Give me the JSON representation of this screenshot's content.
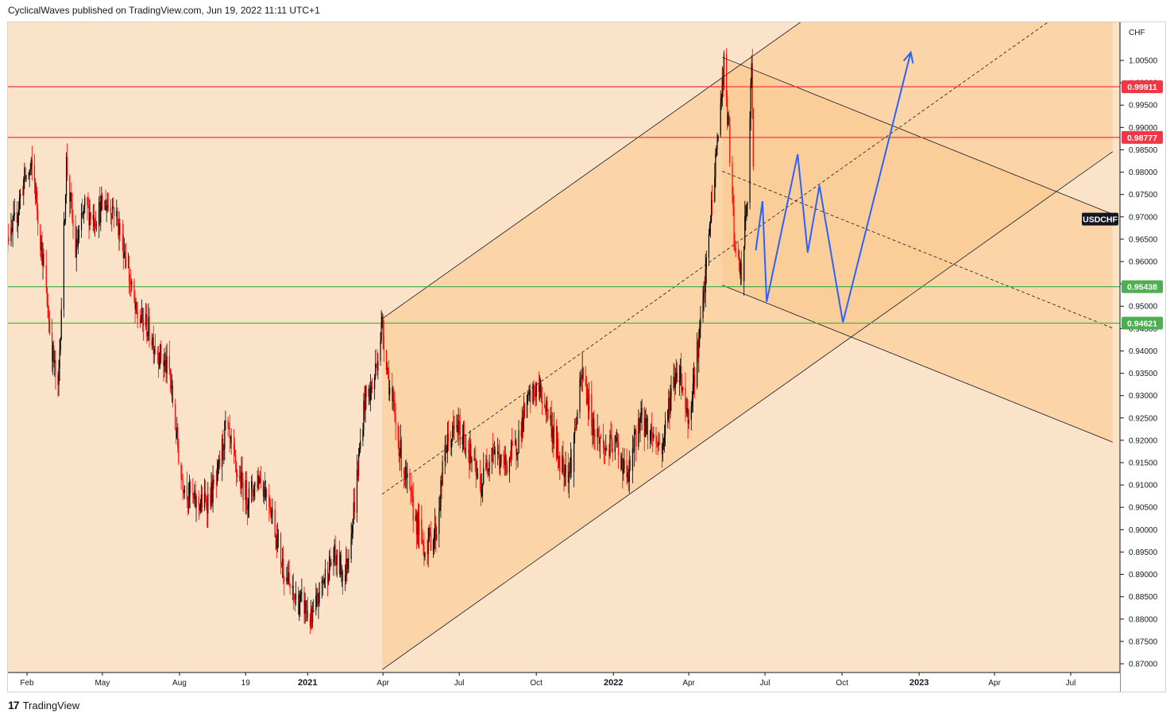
{
  "header": {
    "text": "CyclicalWaves published on TradingView.com, Jun 19, 2022 11:11 UTC+1"
  },
  "footer": {
    "logo": "17",
    "text": "TradingView"
  },
  "chart_data": {
    "type": "candlestick",
    "symbol": "USDCHF",
    "currency": "CHF",
    "y_axis": {
      "ylim": [
        0.8675,
        1.0118
      ],
      "ticks": [
        "0.87000",
        "0.87500",
        "0.88000",
        "0.88500",
        "0.89000",
        "0.89500",
        "0.90000",
        "0.90500",
        "0.91000",
        "0.91500",
        "0.92000",
        "0.92500",
        "0.93000",
        "0.93500",
        "0.94000",
        "0.94500",
        "0.95000",
        "0.95500",
        "0.96000",
        "0.96500",
        "0.97000",
        "0.97500",
        "0.98000",
        "0.98500",
        "0.99000",
        "0.99500",
        "1.00000",
        "1.00500"
      ]
    },
    "x_axis": {
      "labels": [
        {
          "t": "2020-02-01",
          "text": "Feb",
          "bold": false
        },
        {
          "t": "2020-05-01",
          "text": "May",
          "bold": false
        },
        {
          "t": "2020-08-01",
          "text": "Aug",
          "bold": false
        },
        {
          "t": "2020-10-19",
          "text": "19",
          "bold": false
        },
        {
          "t": "2021-01-01",
          "text": "2021",
          "bold": true
        },
        {
          "t": "2021-04-01",
          "text": "Apr",
          "bold": false
        },
        {
          "t": "2021-07-01",
          "text": "Jul",
          "bold": false
        },
        {
          "t": "2021-10-01",
          "text": "Oct",
          "bold": false
        },
        {
          "t": "2022-01-01",
          "text": "2022",
          "bold": true
        },
        {
          "t": "2022-04-01",
          "text": "Apr",
          "bold": false
        },
        {
          "t": "2022-07-01",
          "text": "Jul",
          "bold": false
        },
        {
          "t": "2022-10-01",
          "text": "Oct",
          "bold": false
        },
        {
          "t": "2023-01-01",
          "text": "2023",
          "bold": true
        },
        {
          "t": "2023-04-01",
          "text": "Apr",
          "bold": false
        },
        {
          "t": "2023-07-01",
          "text": "Jul",
          "bold": false
        }
      ]
    },
    "price_path": [
      [
        "2020-01-01",
        0.97
      ],
      [
        "2020-01-13",
        0.965
      ],
      [
        "2020-01-28",
        0.978
      ],
      [
        "2020-02-08",
        0.981
      ],
      [
        "2020-02-20",
        0.96
      ],
      [
        "2020-02-28",
        0.945
      ],
      [
        "2020-03-09",
        0.93
      ],
      [
        "2020-03-19",
        0.982
      ],
      [
        "2020-03-30",
        0.962
      ],
      [
        "2020-04-10",
        0.972
      ],
      [
        "2020-04-21",
        0.97
      ],
      [
        "2020-05-05",
        0.973
      ],
      [
        "2020-05-15",
        0.972
      ],
      [
        "2020-05-28",
        0.962
      ],
      [
        "2020-06-10",
        0.948
      ],
      [
        "2020-06-22",
        0.946
      ],
      [
        "2020-07-06",
        0.94
      ],
      [
        "2020-07-20",
        0.935
      ],
      [
        "2020-08-03",
        0.912
      ],
      [
        "2020-08-18",
        0.906
      ],
      [
        "2020-09-01",
        0.906
      ],
      [
        "2020-09-14",
        0.91
      ],
      [
        "2020-09-25",
        0.923
      ],
      [
        "2020-10-08",
        0.913
      ],
      [
        "2020-10-22",
        0.907
      ],
      [
        "2020-11-04",
        0.912
      ],
      [
        "2020-11-16",
        0.907
      ],
      [
        "2020-12-01",
        0.893
      ],
      [
        "2020-12-14",
        0.885
      ],
      [
        "2020-12-28",
        0.883
      ],
      [
        "2021-01-06",
        0.879
      ],
      [
        "2021-01-18",
        0.888
      ],
      [
        "2021-02-01",
        0.894
      ],
      [
        "2021-02-15",
        0.89
      ],
      [
        "2021-02-26",
        0.906
      ],
      [
        "2021-03-10",
        0.929
      ],
      [
        "2021-03-20",
        0.932
      ],
      [
        "2021-03-31",
        0.946
      ],
      [
        "2021-04-10",
        0.93
      ],
      [
        "2021-04-24",
        0.915
      ],
      [
        "2021-05-06",
        0.905
      ],
      [
        "2021-05-20",
        0.896
      ],
      [
        "2021-06-04",
        0.9
      ],
      [
        "2021-06-14",
        0.918
      ],
      [
        "2021-06-28",
        0.923
      ],
      [
        "2021-07-12",
        0.918
      ],
      [
        "2021-07-26",
        0.909
      ],
      [
        "2021-08-09",
        0.919
      ],
      [
        "2021-08-22",
        0.914
      ],
      [
        "2021-09-06",
        0.918
      ],
      [
        "2021-09-20",
        0.928
      ],
      [
        "2021-10-02",
        0.932
      ],
      [
        "2021-10-14",
        0.927
      ],
      [
        "2021-10-28",
        0.916
      ],
      [
        "2021-11-10",
        0.913
      ],
      [
        "2021-11-25",
        0.935
      ],
      [
        "2021-12-08",
        0.923
      ],
      [
        "2021-12-22",
        0.918
      ],
      [
        "2022-01-05",
        0.919
      ],
      [
        "2022-01-18",
        0.911
      ],
      [
        "2022-02-01",
        0.925
      ],
      [
        "2022-02-14",
        0.922
      ],
      [
        "2022-02-28",
        0.918
      ],
      [
        "2022-03-10",
        0.93
      ],
      [
        "2022-03-20",
        0.937
      ],
      [
        "2022-03-31",
        0.925
      ],
      [
        "2022-04-08",
        0.935
      ],
      [
        "2022-04-18",
        0.95
      ],
      [
        "2022-04-28",
        0.972
      ],
      [
        "2022-05-07",
        0.991
      ],
      [
        "2022-05-13",
        1.004
      ],
      [
        "2022-05-20",
        0.985
      ],
      [
        "2022-05-26",
        0.962
      ],
      [
        "2022-06-03",
        0.957
      ],
      [
        "2022-06-10",
        0.975
      ],
      [
        "2022-06-15",
        1.003
      ],
      [
        "2022-06-19",
        0.965
      ]
    ],
    "horizontal_levels": [
      {
        "value": 0.99911,
        "label": "0.99911",
        "color": "#f23645"
      },
      {
        "value": 0.98777,
        "label": "0.98777",
        "color": "#f23645"
      },
      {
        "value": 0.95438,
        "label": "0.95438",
        "color": "#4caf50"
      },
      {
        "value": 0.94621,
        "label": "0.94621",
        "color": "#4caf50"
      }
    ],
    "rising_channel": {
      "start": [
        "2021-03-31",
        0.9472
      ],
      "slope_per_year": 0.0485,
      "width": 0.0785,
      "fill": "#fbc98c"
    },
    "falling_channel": {
      "start": [
        "2022-05-11",
        1.0057
      ],
      "slope_per_year": -0.0275,
      "width": 0.051,
      "fill": "#fbc98c"
    },
    "projection_path": [
      [
        "2022-06-20",
        0.9625
      ],
      [
        "2022-06-28",
        0.9735
      ],
      [
        "2022-07-03",
        0.951
      ],
      [
        "2022-08-09",
        0.984
      ],
      [
        "2022-08-21",
        0.962
      ],
      [
        "2022-09-04",
        0.977
      ],
      [
        "2022-10-02",
        0.9464
      ],
      [
        "2022-12-22",
        1.0068
      ]
    ],
    "projection_color": "#2962ff",
    "price_label": {
      "text": "USDCHF",
      "value": 0.9695
    },
    "colors": {
      "background": "#fbe3ca",
      "up_candle": "#000000",
      "down_candle": "#ff0000",
      "channel_line": "#131722"
    }
  }
}
